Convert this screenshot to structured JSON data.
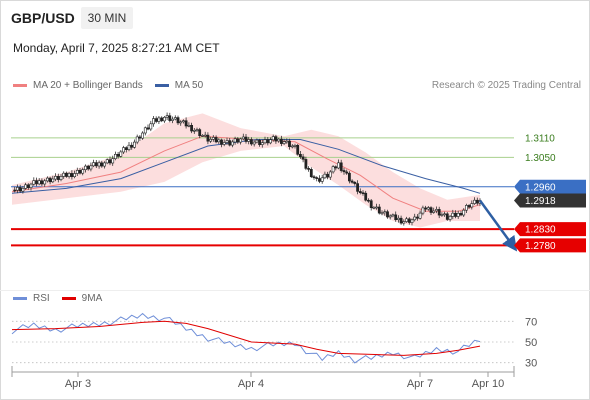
{
  "header": {
    "symbol": "GBP/USD",
    "timeframe": "30 MIN",
    "datetime": "Monday, April 7, 2025 8:27:21 AM CET"
  },
  "legend_main": [
    {
      "label": "MA 20 + Bollinger Bands",
      "color": "#f08080"
    },
    {
      "label": "MA 50",
      "color": "#3a5fa3"
    }
  ],
  "legend_rsi": [
    {
      "label": "RSI",
      "color": "#6f8fd8"
    },
    {
      "label": "9MA",
      "color": "#e00000"
    }
  ],
  "credit": "Research © 2025 Trading Central",
  "colors": {
    "support": "#e60000",
    "resistance": "#a8d08d",
    "pivot": "#3a6fc4",
    "arrow": "#2e5fa3",
    "price_tag": "#333333"
  },
  "chart_data": [
    {
      "type": "candlestick",
      "title": "",
      "ylim": [
        1.272,
        1.322
      ],
      "x_ticks": [
        "Apr 3",
        "Apr 4",
        "Apr 7",
        "Apr 10"
      ],
      "levels": [
        {
          "label": "1.3110",
          "value": 1.311,
          "role": "resistance"
        },
        {
          "label": "1.3050",
          "value": 1.305,
          "role": "resistance"
        },
        {
          "label": "1.2960",
          "value": 1.296,
          "role": "pivot"
        },
        {
          "label": "1.2918",
          "value": 1.2918,
          "role": "last-price"
        },
        {
          "label": "1.2830",
          "value": 1.283,
          "role": "support"
        },
        {
          "label": "1.2780",
          "value": 1.278,
          "role": "support"
        }
      ],
      "close_path": [
        [
          0,
          1.295
        ],
        [
          4,
          1.2955
        ],
        [
          8,
          1.297
        ],
        [
          12,
          1.298
        ],
        [
          16,
          1.2985
        ],
        [
          20,
          1.2995
        ],
        [
          24,
          1.3005
        ],
        [
          28,
          1.302
        ],
        [
          32,
          1.303
        ],
        [
          36,
          1.304
        ],
        [
          40,
          1.3065
        ],
        [
          44,
          1.309
        ],
        [
          48,
          1.3125
        ],
        [
          52,
          1.316
        ],
        [
          56,
          1.3175
        ],
        [
          60,
          1.3165
        ],
        [
          64,
          1.315
        ],
        [
          68,
          1.313
        ],
        [
          72,
          1.3105
        ],
        [
          76,
          1.31
        ],
        [
          80,
          1.3095
        ],
        [
          84,
          1.3105
        ],
        [
          88,
          1.31
        ],
        [
          92,
          1.3095
        ],
        [
          96,
          1.3105
        ],
        [
          100,
          1.31
        ],
        [
          104,
          1.308
        ],
        [
          108,
          1.302
        ],
        [
          112,
          1.298
        ],
        [
          116,
          1.2995
        ],
        [
          120,
          1.303
        ],
        [
          124,
          1.2985
        ],
        [
          128,
          1.294
        ],
        [
          132,
          1.2905
        ],
        [
          136,
          1.288
        ],
        [
          140,
          1.2865
        ],
        [
          144,
          1.2855
        ],
        [
          148,
          1.286
        ],
        [
          152,
          1.2895
        ],
        [
          156,
          1.2885
        ],
        [
          160,
          1.2865
        ],
        [
          164,
          1.2875
        ],
        [
          168,
          1.2905
        ],
        [
          172,
          1.2918
        ]
      ],
      "ma20": [
        [
          0,
          1.2945
        ],
        [
          20,
          1.297
        ],
        [
          40,
          1.3005
        ],
        [
          56,
          1.307
        ],
        [
          70,
          1.3115
        ],
        [
          88,
          1.3105
        ],
        [
          104,
          1.3098
        ],
        [
          116,
          1.3045
        ],
        [
          128,
          1.2995
        ],
        [
          140,
          1.2925
        ],
        [
          152,
          1.2885
        ],
        [
          164,
          1.2885
        ],
        [
          172,
          1.2905
        ]
      ],
      "bb_upper": [
        [
          0,
          1.2965
        ],
        [
          20,
          1.3005
        ],
        [
          40,
          1.306
        ],
        [
          56,
          1.3155
        ],
        [
          70,
          1.3185
        ],
        [
          84,
          1.314
        ],
        [
          100,
          1.3115
        ],
        [
          110,
          1.3135
        ],
        [
          120,
          1.3115
        ],
        [
          130,
          1.3065
        ],
        [
          140,
          1.3005
        ],
        [
          150,
          1.2955
        ],
        [
          160,
          1.292
        ],
        [
          172,
          1.2935
        ]
      ],
      "bb_lower": [
        [
          0,
          1.2905
        ],
        [
          20,
          1.2925
        ],
        [
          40,
          1.2945
        ],
        [
          56,
          1.2975
        ],
        [
          70,
          1.3035
        ],
        [
          84,
          1.307
        ],
        [
          100,
          1.3085
        ],
        [
          110,
          1.302
        ],
        [
          120,
          1.2965
        ],
        [
          130,
          1.2905
        ],
        [
          140,
          1.2855
        ],
        [
          150,
          1.2835
        ],
        [
          160,
          1.2855
        ],
        [
          172,
          1.2855
        ]
      ],
      "ma50": [
        [
          0,
          1.294
        ],
        [
          20,
          1.2955
        ],
        [
          40,
          1.2985
        ],
        [
          56,
          1.3035
        ],
        [
          72,
          1.3085
        ],
        [
          90,
          1.3105
        ],
        [
          106,
          1.3105
        ],
        [
          120,
          1.3075
        ],
        [
          136,
          1.3025
        ],
        [
          152,
          1.2985
        ],
        [
          166,
          1.2955
        ],
        [
          172,
          1.294
        ]
      ],
      "arrow": {
        "from": [
          172,
          1.2918
        ],
        "to": [
          184,
          1.278
        ]
      }
    },
    {
      "type": "line",
      "title": "RSI",
      "ylim": [
        20,
        80
      ],
      "y_ticks": [
        "70",
        "50",
        "30"
      ],
      "series": [
        {
          "name": "RSI",
          "values": [
            [
              0,
              61
            ],
            [
              8,
              66
            ],
            [
              16,
              62
            ],
            [
              24,
              65
            ],
            [
              32,
              68
            ],
            [
              40,
              71
            ],
            [
              48,
              76
            ],
            [
              56,
              73
            ],
            [
              64,
              63
            ],
            [
              72,
              54
            ],
            [
              80,
              48
            ],
            [
              88,
              44
            ],
            [
              96,
              47
            ],
            [
              104,
              49
            ],
            [
              108,
              42
            ],
            [
              114,
              33
            ],
            [
              120,
              40
            ],
            [
              126,
              33
            ],
            [
              132,
              34
            ],
            [
              140,
              40
            ],
            [
              148,
              34
            ],
            [
              156,
              43
            ],
            [
              164,
              41
            ],
            [
              172,
              52
            ]
          ]
        },
        {
          "name": "9MA",
          "values": [
            [
              0,
              62
            ],
            [
              16,
              63
            ],
            [
              32,
              65
            ],
            [
              48,
              69
            ],
            [
              56,
              70
            ],
            [
              64,
              68
            ],
            [
              72,
              63
            ],
            [
              88,
              50
            ],
            [
              104,
              48
            ],
            [
              112,
              43
            ],
            [
              120,
              39
            ],
            [
              132,
              38
            ],
            [
              144,
              37
            ],
            [
              156,
              39
            ],
            [
              164,
              42
            ],
            [
              172,
              46
            ]
          ]
        }
      ]
    }
  ]
}
